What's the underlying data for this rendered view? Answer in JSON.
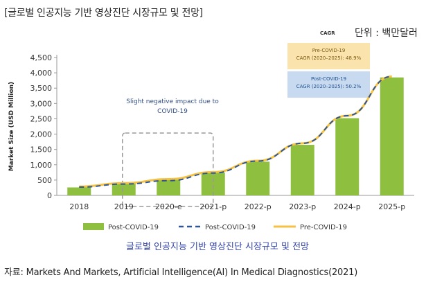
{
  "header": "[글로벌 인공지능 기반 영상진단 시장규모 및 전망]",
  "unit_label": "단위 : 백만달러",
  "cagr_label": "CAGR",
  "cagr_boxes": [
    {
      "title": "Pre-COVID-19",
      "text": "CAGR (2020–2025): 48.9%",
      "color": "#fbe3ad"
    },
    {
      "title": "Post-COVID-19",
      "text": "CAGR (2020–2025): 50.2%",
      "color": "#c7daf0"
    }
  ],
  "annotation": [
    "Slight negative impact due to",
    "COVID-19"
  ],
  "caption": "글로벌 인공지능 기반 영상진단 시장규모 및 전망",
  "source": "자료: Markets And Markets, Artificial Intelligence(AI) In Medical Diagnostics(2021)",
  "colors": {
    "bar": "#8fbf3f",
    "post_line": "#2e5597",
    "pre_line": "#f5c242"
  },
  "chart_data": {
    "type": "bar",
    "title": "",
    "xlabel": "",
    "ylabel": "Market Size (USD Million)",
    "ylim": [
      0,
      4500
    ],
    "yticks": [
      0,
      500,
      1000,
      1500,
      2000,
      2500,
      3000,
      3500,
      4000,
      4500
    ],
    "ytick_labels": [
      "0",
      "500",
      "1,000",
      "1,500",
      "2,000",
      "2,500",
      "3,000",
      "3,500",
      "4,000",
      "4,500"
    ],
    "categories": [
      "2018",
      "2019",
      "2020-e",
      "2021-p",
      "2022-p",
      "2023-p",
      "2024-p",
      "2025-p"
    ],
    "series": [
      {
        "name": "Post-COVID-19",
        "kind": "bar",
        "values": [
          260,
          390,
          510,
          740,
          1100,
          1650,
          2520,
          3850
        ]
      },
      {
        "name": "Post-COVID-19",
        "kind": "dashed-line",
        "values": [
          270,
          370,
          480,
          730,
          1120,
          1700,
          2600,
          3880
        ]
      },
      {
        "name": "Pre-COVID-19",
        "kind": "line",
        "values": [
          290,
          400,
          530,
          760,
          1130,
          1700,
          2600,
          3880
        ]
      }
    ]
  }
}
